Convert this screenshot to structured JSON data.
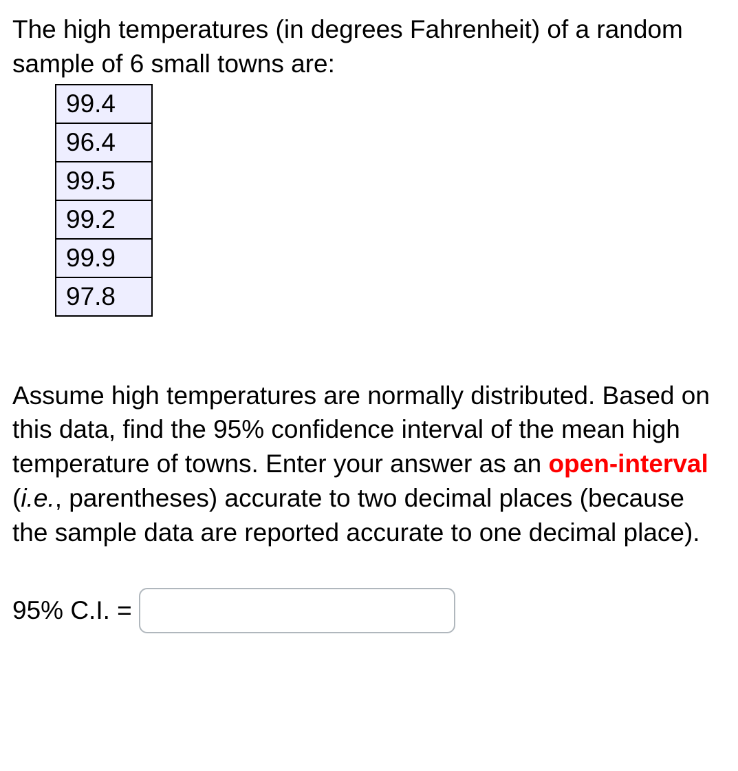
{
  "intro": "The high temperatures (in degrees Fahrenheit) of a random sample of 6 small towns are:",
  "data_values": [
    "99.4",
    "96.4",
    "99.5",
    "99.2",
    "99.9",
    "97.8"
  ],
  "table": {
    "cell_bg": "#eeeeff",
    "border_color": "#000000"
  },
  "para2_pre": "Assume high temperatures are normally distributed. Based on this data, find the 95% confidence interval of the mean high temperature of towns. Enter your answer as an ",
  "highlight_text": "open-interval",
  "para2_mid1": " (",
  "italic_text": "i.e.",
  "para2_mid2": ", parentheses) accurate to two decimal places (because the sample data are reported accurate to one decimal place).",
  "answer_label": "95% C.I. = ",
  "colors": {
    "text": "#000000",
    "highlight": "#ff0000",
    "input_border": "#b0b7bd",
    "background": "#ffffff"
  },
  "fontsize": 37
}
